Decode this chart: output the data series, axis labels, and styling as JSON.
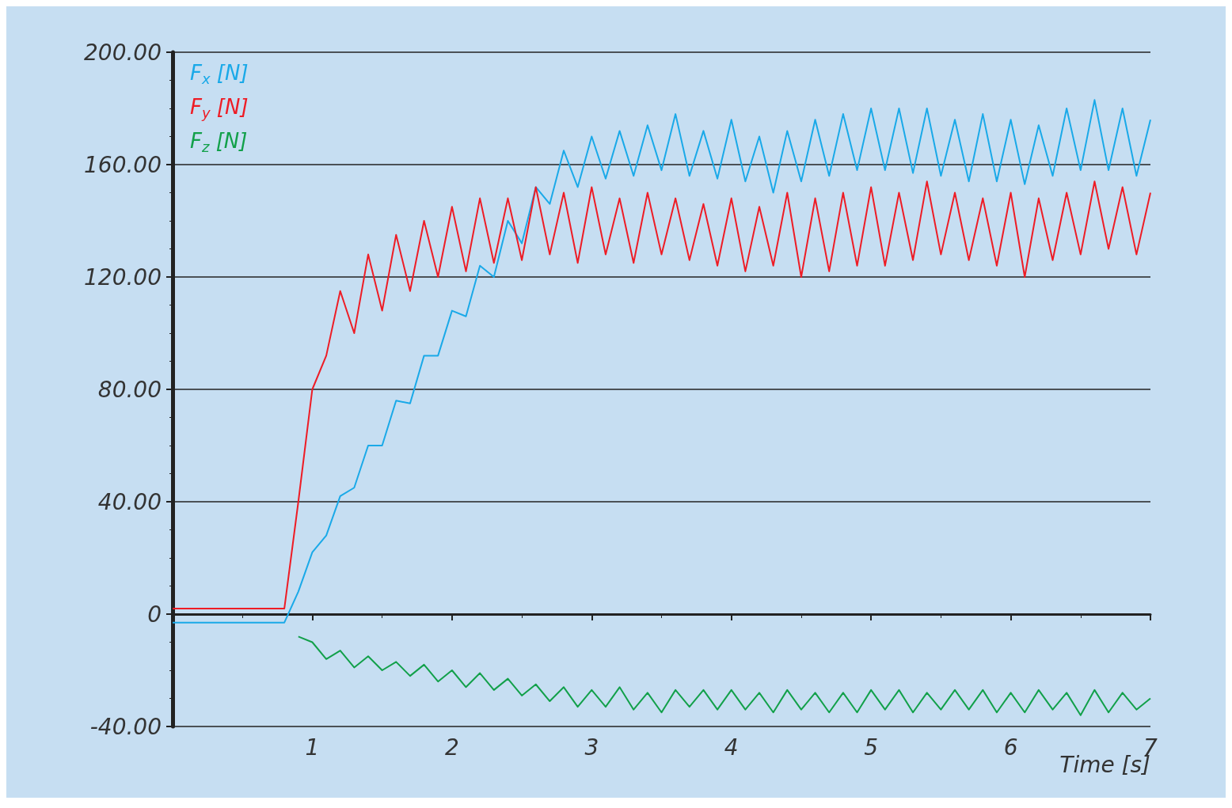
{
  "chart_data": {
    "type": "line",
    "xlabel": "Time [s]",
    "x": [
      0,
      0.1,
      0.2,
      0.3,
      0.4,
      0.5,
      0.6,
      0.7,
      0.8,
      0.9,
      1,
      1.1,
      1.2,
      1.3,
      1.4,
      1.5,
      1.6,
      1.7,
      1.8,
      1.9,
      2,
      2.1,
      2.2,
      2.3,
      2.4,
      2.5,
      2.6,
      2.7,
      2.8,
      2.9,
      3,
      3.1,
      3.2,
      3.3,
      3.4,
      3.5,
      3.6,
      3.7,
      3.8,
      3.9,
      4,
      4.1,
      4.2,
      4.3,
      4.4,
      4.5,
      4.6,
      4.7,
      4.8,
      4.9,
      5,
      5.1,
      5.2,
      5.3,
      5.4,
      5.5,
      5.6,
      5.7,
      5.8,
      5.9,
      6,
      6.1,
      6.2,
      6.3,
      6.4,
      6.5,
      6.6,
      6.7,
      6.8,
      6.9,
      7
    ],
    "series": [
      {
        "name": "F$_{x}$ [N]",
        "color": "#1aa9e8",
        "values": [
          -3,
          -3,
          -3,
          -3,
          -3,
          -3,
          -3,
          -3,
          -3,
          8,
          22,
          28,
          42,
          45,
          60,
          60,
          76,
          75,
          92,
          92,
          108,
          106,
          124,
          120,
          140,
          132,
          152,
          146,
          165,
          152,
          170,
          155,
          172,
          156,
          174,
          158,
          178,
          156,
          172,
          155,
          176,
          154,
          170,
          150,
          172,
          154,
          176,
          156,
          178,
          158,
          180,
          158,
          180,
          157,
          180,
          156,
          176,
          154,
          178,
          154,
          176,
          153,
          174,
          156,
          180,
          158,
          183,
          158,
          180,
          156,
          176
        ]
      },
      {
        "name": "F$_{y}$ [N]",
        "color": "#ee1c25",
        "values": [
          2,
          2,
          2,
          2,
          2,
          2,
          2,
          2,
          2,
          40,
          80,
          92,
          115,
          100,
          128,
          108,
          135,
          115,
          140,
          120,
          145,
          122,
          148,
          125,
          148,
          126,
          152,
          128,
          150,
          125,
          152,
          128,
          148,
          125,
          150,
          128,
          148,
          126,
          146,
          124,
          148,
          122,
          145,
          124,
          150,
          120,
          148,
          122,
          150,
          124,
          152,
          124,
          150,
          126,
          154,
          128,
          150,
          126,
          148,
          124,
          150,
          120,
          148,
          126,
          150,
          128,
          154,
          130,
          152,
          128,
          150
        ]
      },
      {
        "name": "F$_{z}$ [N]",
        "color": "#12a04a",
        "values": [
          null,
          null,
          null,
          null,
          null,
          null,
          null,
          null,
          null,
          -8,
          -10,
          -16,
          -13,
          -19,
          -15,
          -20,
          -17,
          -22,
          -18,
          -24,
          -20,
          -26,
          -21,
          -27,
          -23,
          -29,
          -25,
          -31,
          -26,
          -33,
          -27,
          -33,
          -26,
          -34,
          -28,
          -35,
          -27,
          -33,
          -27,
          -34,
          -27,
          -34,
          -28,
          -35,
          -27,
          -34,
          -28,
          -35,
          -28,
          -35,
          -27,
          -34,
          -27,
          -35,
          -28,
          -34,
          -27,
          -34,
          -27,
          -35,
          -28,
          -35,
          -27,
          -34,
          -28,
          -36,
          -27,
          -35,
          -28,
          -34,
          -30
        ]
      }
    ],
    "xlim": [
      0,
      7
    ],
    "xticks": [
      1,
      2,
      3,
      4,
      5,
      6,
      7
    ],
    "ylim": [
      -40,
      200
    ],
    "yticks": [
      {
        "value": -40,
        "label": "-40.00"
      },
      {
        "value": 0,
        "label": "0"
      },
      {
        "value": 40,
        "label": "40.00"
      },
      {
        "value": 80,
        "label": "80.00"
      },
      {
        "value": 120,
        "label": "120.00"
      },
      {
        "value": 160,
        "label": "160.00"
      },
      {
        "value": 200,
        "label": "200.00"
      }
    ],
    "grid": "y",
    "legend": "top left",
    "marker": "none",
    "line_style": "solid"
  }
}
